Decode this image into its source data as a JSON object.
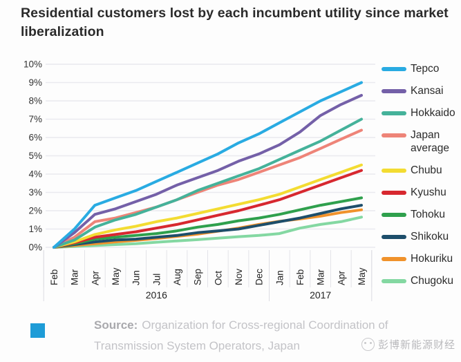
{
  "title": "Residential customers lost by each incumbent utility since market liberalization",
  "source": {
    "label": "Source:",
    "line1": "Organization for Cross-regional Coordination of",
    "line2": "Transmission System Operators, Japan"
  },
  "watermark": {
    "text": "彭博新能源财经"
  },
  "colors": {
    "source_square": "#1e9cd7",
    "gridline": "#eaeaef",
    "axis_text": "#333333"
  },
  "chart_data": {
    "type": "line",
    "title": "Residential customers lost by each incumbent utility since market liberalization",
    "unit": "%",
    "x": [
      "Feb",
      "Mar",
      "Apr",
      "May",
      "Jun",
      "Jul",
      "Aug",
      "Sep",
      "Oct",
      "Nov",
      "Dec",
      "Jan",
      "Feb",
      "Mar",
      "Apr",
      "May"
    ],
    "x_groups": [
      {
        "label": "2016",
        "from": 0,
        "to": 10
      },
      {
        "label": "2017",
        "from": 11,
        "to": 15
      }
    ],
    "ylim": [
      0,
      10
    ],
    "yticks": [
      "0%",
      "1%",
      "2%",
      "3%",
      "4%",
      "5%",
      "6%",
      "7%",
      "8%",
      "9%",
      "10%"
    ],
    "grid": true,
    "legend_position": "right",
    "series": [
      {
        "name": "Tepco",
        "color": "#29abe2",
        "values": [
          0,
          1.0,
          2.3,
          2.7,
          3.1,
          3.6,
          4.1,
          4.6,
          5.1,
          5.7,
          6.2,
          6.8,
          7.4,
          8.0,
          8.5,
          9.0
        ]
      },
      {
        "name": "Kansai",
        "color": "#7460a8",
        "values": [
          0,
          0.8,
          1.8,
          2.1,
          2.5,
          2.9,
          3.4,
          3.8,
          4.2,
          4.7,
          5.1,
          5.6,
          6.3,
          7.2,
          7.8,
          8.3
        ]
      },
      {
        "name": "Hokkaido",
        "color": "#45b29a",
        "values": [
          0,
          0.4,
          1.1,
          1.5,
          1.8,
          2.2,
          2.6,
          3.1,
          3.5,
          3.9,
          4.3,
          4.8,
          5.3,
          5.8,
          6.4,
          7.0
        ]
      },
      {
        "name": "Japan average",
        "color": "#ee8478",
        "values": [
          0,
          0.55,
          1.4,
          1.6,
          1.9,
          2.2,
          2.6,
          3.0,
          3.4,
          3.7,
          4.1,
          4.5,
          4.9,
          5.4,
          5.9,
          6.4
        ]
      },
      {
        "name": "Chubu",
        "color": "#f3dc32",
        "values": [
          0,
          0.3,
          0.7,
          0.95,
          1.15,
          1.4,
          1.6,
          1.85,
          2.1,
          2.35,
          2.6,
          2.9,
          3.3,
          3.7,
          4.1,
          4.5
        ]
      },
      {
        "name": "Kyushu",
        "color": "#d7282f",
        "values": [
          0,
          0.25,
          0.55,
          0.7,
          0.85,
          1.05,
          1.25,
          1.5,
          1.75,
          2.0,
          2.3,
          2.6,
          3.0,
          3.4,
          3.8,
          4.2
        ]
      },
      {
        "name": "Tohoku",
        "color": "#2fa04d",
        "values": [
          0,
          0.2,
          0.45,
          0.55,
          0.65,
          0.75,
          0.9,
          1.1,
          1.25,
          1.45,
          1.6,
          1.8,
          2.05,
          2.3,
          2.5,
          2.7
        ]
      },
      {
        "name": "Shikoku",
        "color": "#1d4e6b",
        "values": [
          0,
          0.15,
          0.3,
          0.4,
          0.45,
          0.55,
          0.65,
          0.8,
          0.9,
          1.0,
          1.2,
          1.4,
          1.6,
          1.85,
          2.1,
          2.3
        ]
      },
      {
        "name": "Hokuriku",
        "color": "#f0922b",
        "values": [
          0,
          0.1,
          0.2,
          0.3,
          0.38,
          0.48,
          0.6,
          0.72,
          0.88,
          1.05,
          1.25,
          1.42,
          1.55,
          1.7,
          1.9,
          2.05
        ]
      },
      {
        "name": "Chugoku",
        "color": "#84d8a2",
        "values": [
          0,
          0.05,
          0.1,
          0.15,
          0.2,
          0.28,
          0.35,
          0.42,
          0.5,
          0.58,
          0.65,
          0.75,
          1.05,
          1.25,
          1.4,
          1.65
        ]
      }
    ]
  }
}
